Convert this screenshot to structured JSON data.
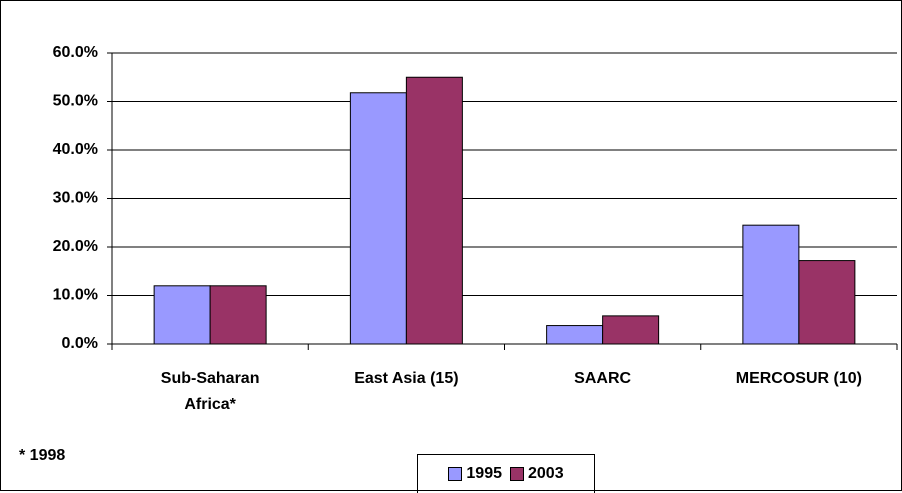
{
  "chart_data": {
    "type": "bar",
    "categories": [
      "Sub-Saharan Africa*",
      "East Asia (15)",
      "SAARC",
      "MERCOSUR (10)"
    ],
    "series": [
      {
        "name": "1995",
        "color": "#9999ff",
        "values": [
          12.0,
          51.8,
          3.8,
          24.5
        ]
      },
      {
        "name": "2003",
        "color": "#993366",
        "values": [
          12.0,
          55.0,
          5.8,
          17.2
        ]
      }
    ],
    "ylim": [
      0,
      60
    ],
    "yticks": [
      {
        "value": 0,
        "label": "0.0%"
      },
      {
        "value": 10,
        "label": "10.0%"
      },
      {
        "value": 20,
        "label": "20.0%"
      },
      {
        "value": 30,
        "label": "30.0%"
      },
      {
        "value": 40,
        "label": "40.0%"
      },
      {
        "value": 50,
        "label": "50.0%"
      },
      {
        "value": 60,
        "label": "60.0%"
      }
    ],
    "grid": true,
    "annotation": "* 1998",
    "legend": "bottom"
  }
}
